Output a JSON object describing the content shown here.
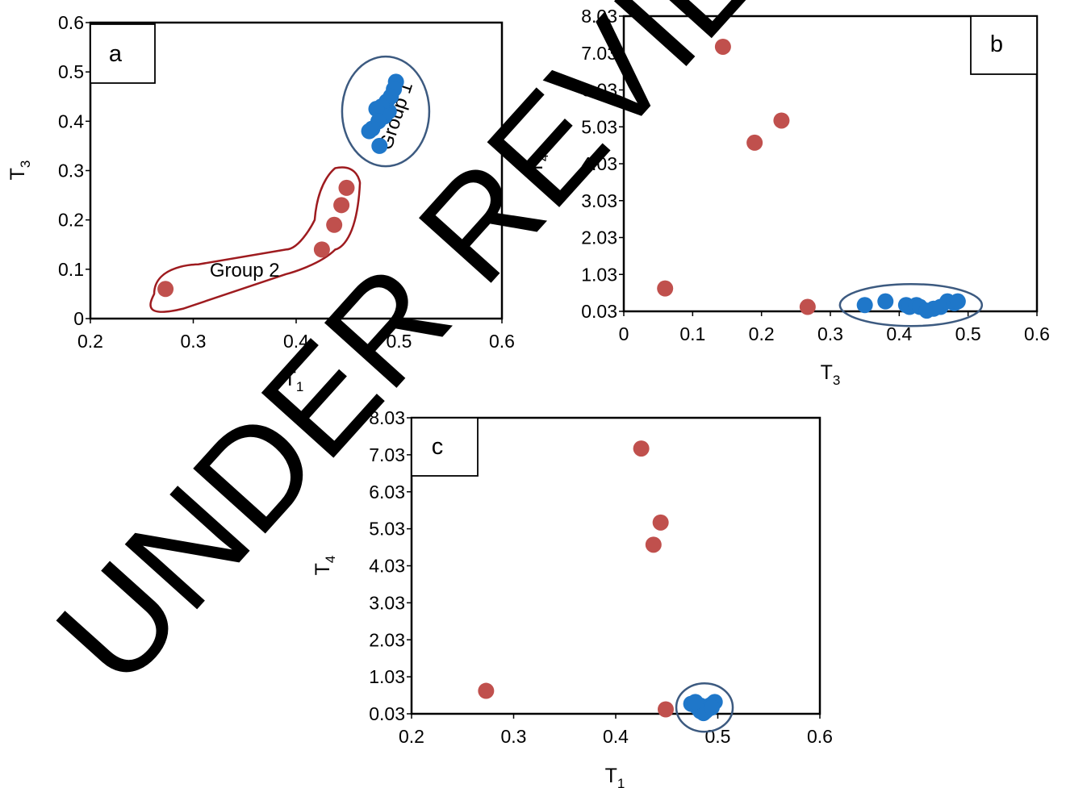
{
  "watermark": "UNDER REVIEW",
  "colors": {
    "group1": "#1f77c9",
    "group2": "#c0504d",
    "group2_outline": "#9e1b1f",
    "group1_outline": "#3c5a80",
    "axis": "#000000",
    "watermark": "#e6e6e6"
  },
  "chart_data": [
    {
      "panel": "a",
      "type": "scatter",
      "xlabel": "T",
      "xlabel_sub": "1",
      "ylabel": "T",
      "ylabel_sub": "3",
      "xlim": [
        0.2,
        0.6
      ],
      "ylim": [
        0,
        0.6
      ],
      "xticks": [
        "0.2",
        "0.3",
        "0.4",
        "0.5",
        "0.6"
      ],
      "yticks": [
        "0",
        "0.1",
        "0.2",
        "0.3",
        "0.4",
        "0.5",
        "0.6"
      ],
      "annotations": [
        "Group 1",
        "Group 2"
      ],
      "series": [
        {
          "color": "#1f77c9",
          "x": [
            0.497,
            0.495,
            0.492,
            0.488,
            0.49,
            0.483,
            0.486,
            0.478,
            0.48,
            0.474,
            0.471,
            0.481
          ],
          "y": [
            0.48,
            0.465,
            0.45,
            0.44,
            0.42,
            0.43,
            0.41,
            0.425,
            0.4,
            0.385,
            0.38,
            0.35
          ]
        },
        {
          "color": "#c0504d",
          "x": [
            0.273,
            0.425,
            0.437,
            0.444,
            0.449
          ],
          "y": [
            0.06,
            0.14,
            0.19,
            0.23,
            0.265
          ]
        }
      ]
    },
    {
      "panel": "b",
      "type": "scatter",
      "xlabel": "T",
      "xlabel_sub": "3",
      "ylabel": "T",
      "ylabel_sub": "4",
      "xlim": [
        0,
        0.6
      ],
      "ylim": [
        0.03,
        8.03
      ],
      "xticks": [
        "0",
        "0.1",
        "0.2",
        "0.3",
        "0.4",
        "0.5",
        "0.6"
      ],
      "yticks": [
        "0.03",
        "1.03",
        "2.03",
        "3.03",
        "4.03",
        "5.03",
        "6.03",
        "7.03",
        "8.03"
      ],
      "series": [
        {
          "color": "#1f77c9",
          "x": [
            0.35,
            0.38,
            0.41,
            0.415,
            0.425,
            0.43,
            0.44,
            0.45,
            0.46,
            0.47,
            0.48,
            0.485
          ],
          "y": [
            0.2,
            0.3,
            0.2,
            0.15,
            0.2,
            0.15,
            0.05,
            0.1,
            0.15,
            0.3,
            0.25,
            0.3
          ]
        },
        {
          "color": "#c0504d",
          "x": [
            0.06,
            0.144,
            0.19,
            0.229,
            0.267
          ],
          "y": [
            0.65,
            7.2,
            4.6,
            5.2,
            0.15
          ]
        }
      ]
    },
    {
      "panel": "c",
      "type": "scatter",
      "xlabel": "T",
      "xlabel_sub": "1",
      "ylabel": "T",
      "ylabel_sub": "4",
      "xlim": [
        0.2,
        0.6
      ],
      "ylim": [
        0.03,
        8.03
      ],
      "xticks": [
        "0.2",
        "0.3",
        "0.4",
        "0.5",
        "0.6"
      ],
      "yticks": [
        "0.03",
        "1.03",
        "2.03",
        "3.03",
        "4.03",
        "5.03",
        "6.03",
        "7.03",
        "8.03"
      ],
      "series": [
        {
          "color": "#1f77c9",
          "x": [
            0.474,
            0.48,
            0.483,
            0.486,
            0.49,
            0.492,
            0.495,
            0.497,
            0.483,
            0.488,
            0.478,
            0.494
          ],
          "y": [
            0.3,
            0.2,
            0.1,
            0.05,
            0.15,
            0.25,
            0.3,
            0.35,
            0.25,
            0.1,
            0.35,
            0.2
          ]
        },
        {
          "color": "#c0504d",
          "x": [
            0.273,
            0.425,
            0.437,
            0.444,
            0.449
          ],
          "y": [
            0.65,
            7.2,
            4.6,
            5.2,
            0.15
          ]
        }
      ]
    }
  ]
}
